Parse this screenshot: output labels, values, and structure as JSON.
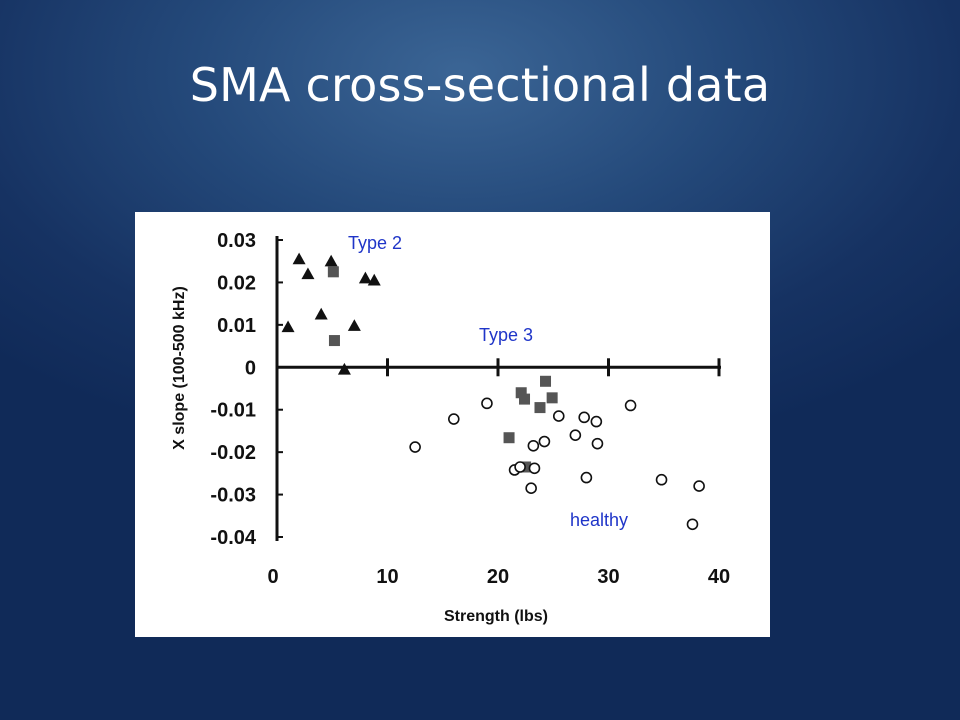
{
  "slide": {
    "title": "SMA cross-sectional data"
  },
  "chart_data": {
    "type": "scatter",
    "xlabel": "Strength (lbs)",
    "ylabel": "X slope (100-500 kHz)",
    "xlim": [
      0,
      40
    ],
    "ylim": [
      -0.04,
      0.03
    ],
    "x_ticks": [
      0,
      10,
      20,
      30,
      40
    ],
    "x_tick_labels": [
      "0",
      "10",
      "20",
      "30",
      "40"
    ],
    "y_ticks": [
      0.03,
      0.02,
      0.01,
      0,
      -0.01,
      -0.02,
      -0.03,
      -0.04
    ],
    "y_tick_labels": [
      "0.03",
      "0.02",
      "0.01",
      "0",
      "-0.01",
      "-0.02",
      "-0.03",
      "-0.04"
    ],
    "grid": false,
    "legend": null,
    "colors": {
      "marker": "#111111",
      "square": "#555555",
      "annotation": "#1f35c8"
    },
    "series": [
      {
        "marker": "triangle",
        "points": [
          [
            1.0,
            0.0095
          ],
          [
            2.0,
            0.0255
          ],
          [
            2.8,
            0.022
          ],
          [
            4.0,
            0.0125
          ],
          [
            4.9,
            0.025
          ],
          [
            6.1,
            -0.0005
          ],
          [
            7.0,
            0.0098
          ],
          [
            8.0,
            0.021
          ],
          [
            8.8,
            0.0205
          ]
        ]
      },
      {
        "marker": "square",
        "points": [
          [
            5.1,
            0.0225
          ],
          [
            5.2,
            0.0063
          ],
          [
            21.0,
            -0.0166
          ],
          [
            22.1,
            -0.006
          ],
          [
            22.4,
            -0.0075
          ],
          [
            22.5,
            -0.0235
          ],
          [
            23.8,
            -0.0095
          ],
          [
            24.3,
            -0.0033
          ],
          [
            24.9,
            -0.0072
          ]
        ]
      },
      {
        "marker": "circle",
        "points": [
          [
            12.5,
            -0.0188
          ],
          [
            16.0,
            -0.0122
          ],
          [
            19.0,
            -0.0085
          ],
          [
            21.5,
            -0.0242
          ],
          [
            22.0,
            -0.0235
          ],
          [
            23.0,
            -0.0285
          ],
          [
            23.2,
            -0.0185
          ],
          [
            23.3,
            -0.0238
          ],
          [
            24.2,
            -0.0175
          ],
          [
            25.5,
            -0.0115
          ],
          [
            27.0,
            -0.016
          ],
          [
            27.8,
            -0.0118
          ],
          [
            28.0,
            -0.026
          ],
          [
            28.9,
            -0.0128
          ],
          [
            29.0,
            -0.018
          ],
          [
            32.0,
            -0.009
          ],
          [
            34.8,
            -0.0265
          ],
          [
            37.6,
            -0.037
          ],
          [
            38.2,
            -0.028
          ]
        ]
      }
    ],
    "annotations": [
      "Type 2",
      "Type 3",
      "healthy"
    ]
  }
}
